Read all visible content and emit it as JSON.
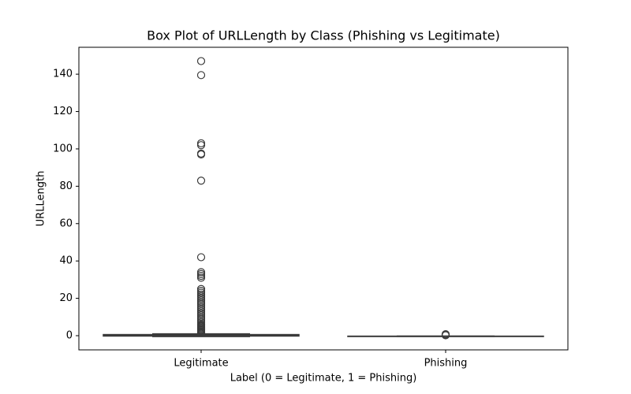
{
  "chart_data": {
    "type": "box",
    "title": "Box Plot of URLLength by Class (Phishing vs Legitimate)",
    "x_label": "Label (0 = Legitimate, 1 = Phishing)",
    "y_label": "URLLength",
    "categories": [
      "Legitimate",
      "Phishing"
    ],
    "color": "#3a3a3a",
    "boxes": [
      {
        "whislo": -0.5,
        "q1": -0.2,
        "median": 0.2,
        "q3": 0.6,
        "whishi": 1.0,
        "outliers": [
          1.5,
          2,
          2.5,
          3,
          3.5,
          4,
          4.5,
          5,
          5.5,
          6,
          7,
          8,
          9,
          10,
          11,
          12,
          13,
          14,
          15,
          16,
          17,
          18,
          19,
          20,
          21,
          22,
          23,
          24,
          25,
          31,
          32,
          33,
          34,
          42,
          83,
          97,
          97.5,
          102,
          103,
          139.5,
          147
        ]
      },
      {
        "whislo": -0.4,
        "q1": -0.35,
        "median": -0.3,
        "q3": -0.25,
        "whishi": -0.2,
        "outliers": [
          0.2,
          0.4,
          0.6,
          0.8
        ]
      }
    ],
    "ylim": [
      -7.6,
      154.4
    ],
    "yticks": [
      0,
      20,
      40,
      60,
      80,
      100,
      120,
      140
    ]
  }
}
